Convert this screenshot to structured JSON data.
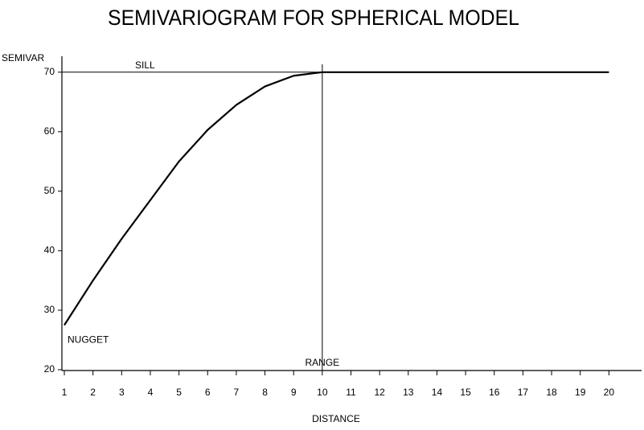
{
  "chart_data": {
    "type": "line",
    "title": "SEMIVARIOGRAM FOR SPHERICAL MODEL",
    "ylabel": "SEMIVAR",
    "xlabel": "DISTANCE",
    "x": [
      1,
      2,
      3,
      4,
      5,
      6,
      7,
      8,
      9,
      10,
      11,
      12,
      13,
      14,
      15,
      16,
      17,
      18,
      19,
      20
    ],
    "series": [
      {
        "color": "#000000",
        "values": [
          27.5,
          35,
          42,
          48.5,
          55,
          60.3,
          64.5,
          67.6,
          69.4,
          70,
          70,
          70,
          70,
          70,
          70,
          70,
          70,
          70,
          70,
          70
        ]
      }
    ],
    "xlim": [
      1,
      21
    ],
    "ylim": [
      20,
      72
    ],
    "xticks": [
      1,
      2,
      3,
      4,
      5,
      6,
      7,
      8,
      9,
      10,
      11,
      12,
      13,
      14,
      15,
      16,
      17,
      18,
      19,
      20
    ],
    "yticks": [
      20,
      30,
      40,
      50,
      60,
      70
    ],
    "annotations": [
      {
        "text": "SILL",
        "y": 70
      },
      {
        "text": "RANGE",
        "x": 10
      },
      {
        "text": "NUGGET"
      }
    ]
  }
}
